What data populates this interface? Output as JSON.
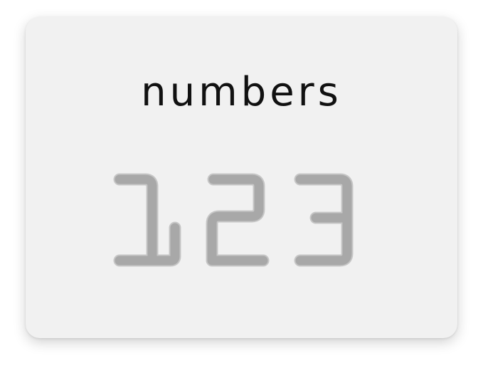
{
  "card": {
    "title": "numbers",
    "digits": [
      "1",
      "2",
      "3"
    ]
  },
  "colors": {
    "card_background": "#f1f1f1",
    "title_text": "#111111",
    "digit_fill": "#a8a8a8",
    "digit_outline": "#c6c6c6"
  }
}
